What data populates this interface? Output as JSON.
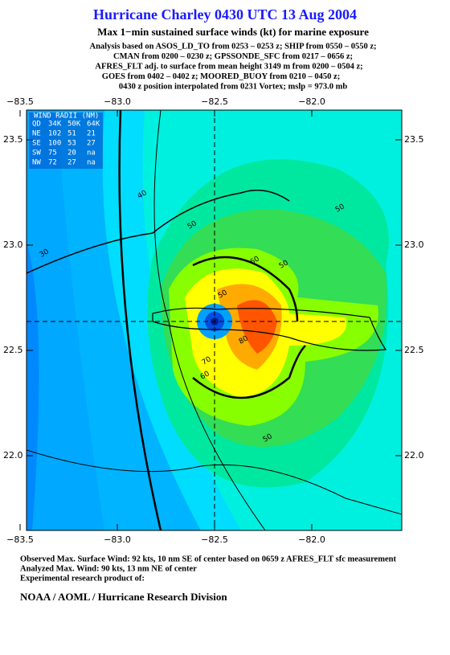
{
  "header": {
    "title": "Hurricane Charley 0430 UTC 13 Aug 2004",
    "subtitle": "Max 1−min sustained surface winds (kt) for marine exposure",
    "analysis_lines": [
      "Analysis based on  ASOS_LD_TO from 0253 – 0253 z;  SHIP from 0550 – 0550 z;",
      "CMAN from 0200 – 0230 z;  GPSSONDE_SFC from 0217 – 0656 z;",
      "AFRES_FLT adj. to surface from mean height 3149 m from 0200 – 0504 z;",
      "GOES from 0402 – 0402 z;  MOORED_BUOY from 0210 – 0450 z;",
      "0430 z position interpolated from 0231 Vortex; mslp = 973.0 mb"
    ]
  },
  "map": {
    "lon_ticks": [
      {
        "value": -83.5,
        "label": "−83.5"
      },
      {
        "value": -83.0,
        "label": "−83.0"
      },
      {
        "value": -82.5,
        "label": "−82.5"
      },
      {
        "value": -82.0,
        "label": "−82.0"
      }
    ],
    "lat_ticks": [
      23.5,
      {
        "value": 23.0,
        "label": "23.0"
      },
      22.5,
      {
        "value": 22.0,
        "label": "22.0"
      }
    ],
    "wind_radii": {
      "title": "WIND RADII (NM)",
      "header": [
        "QD",
        "34K",
        "50K",
        "64K"
      ],
      "rows": [
        [
          "NE",
          "102",
          "51",
          "21"
        ],
        [
          "SE",
          "100",
          "53",
          "27"
        ],
        [
          "SW",
          "75",
          "20",
          "na"
        ],
        [
          "NW",
          "72",
          "27",
          "na"
        ]
      ]
    },
    "contour_labels": [
      "30",
      "40",
      "50",
      "50",
      "50",
      "60",
      "50",
      "70",
      "80",
      "60",
      "50"
    ]
  },
  "footer": {
    "lines": [
      "Observed Max. Surface Wind: 92 kts, 10 nm SE of center based on 0659 z AFRES_FLT sfc measurement",
      "Analyzed Max. Wind: 90 kts, 13 nm NE of center",
      "Experimental research product of:"
    ],
    "org": "NOAA / AOML / Hurricane Research Division"
  }
}
